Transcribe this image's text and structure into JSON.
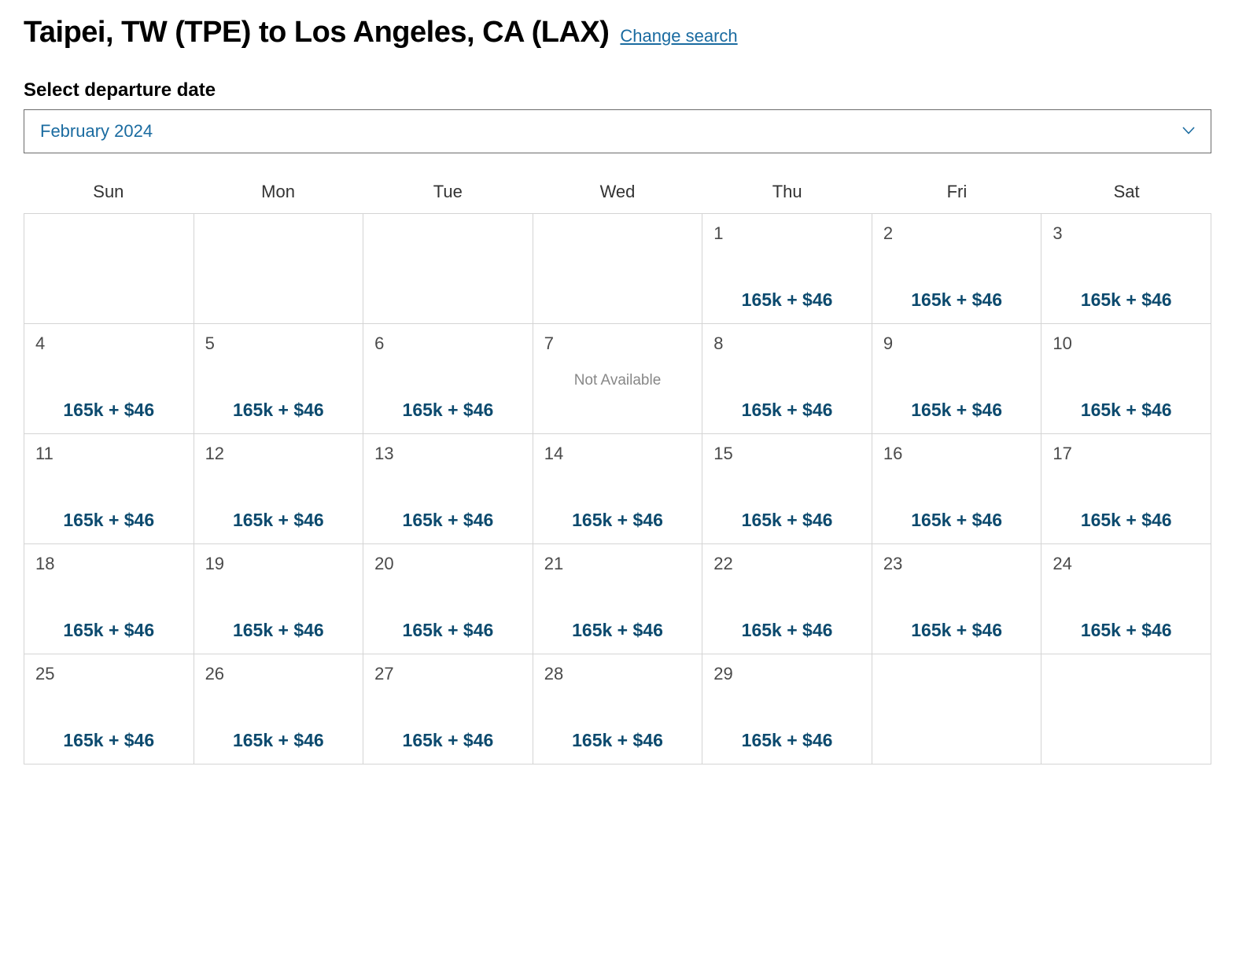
{
  "header": {
    "route_title": "Taipei, TW (TPE) to Los Angeles, CA (LAX)",
    "change_search_label": "Change search"
  },
  "select": {
    "label": "Select departure date",
    "value": "February 2024"
  },
  "colors": {
    "link": "#1a6ba0",
    "price": "#0c4a6e",
    "border": "#d4d4d4",
    "muted": "#888888",
    "text": "#000000",
    "chevron": "#1a6ba0"
  },
  "calendar": {
    "day_headers": [
      "Sun",
      "Mon",
      "Tue",
      "Wed",
      "Thu",
      "Fri",
      "Sat"
    ],
    "not_available_label": "Not Available",
    "cells": [
      {
        "day": "",
        "price": "",
        "available": null
      },
      {
        "day": "",
        "price": "",
        "available": null
      },
      {
        "day": "",
        "price": "",
        "available": null
      },
      {
        "day": "",
        "price": "",
        "available": null
      },
      {
        "day": "1",
        "price": "165k + $46",
        "available": true
      },
      {
        "day": "2",
        "price": "165k + $46",
        "available": true
      },
      {
        "day": "3",
        "price": "165k + $46",
        "available": true
      },
      {
        "day": "4",
        "price": "165k + $46",
        "available": true
      },
      {
        "day": "5",
        "price": "165k + $46",
        "available": true
      },
      {
        "day": "6",
        "price": "165k + $46",
        "available": true
      },
      {
        "day": "7",
        "price": "",
        "available": false
      },
      {
        "day": "8",
        "price": "165k + $46",
        "available": true
      },
      {
        "day": "9",
        "price": "165k + $46",
        "available": true
      },
      {
        "day": "10",
        "price": "165k + $46",
        "available": true
      },
      {
        "day": "11",
        "price": "165k + $46",
        "available": true
      },
      {
        "day": "12",
        "price": "165k + $46",
        "available": true
      },
      {
        "day": "13",
        "price": "165k + $46",
        "available": true
      },
      {
        "day": "14",
        "price": "165k + $46",
        "available": true
      },
      {
        "day": "15",
        "price": "165k + $46",
        "available": true
      },
      {
        "day": "16",
        "price": "165k + $46",
        "available": true
      },
      {
        "day": "17",
        "price": "165k + $46",
        "available": true
      },
      {
        "day": "18",
        "price": "165k + $46",
        "available": true
      },
      {
        "day": "19",
        "price": "165k + $46",
        "available": true
      },
      {
        "day": "20",
        "price": "165k + $46",
        "available": true
      },
      {
        "day": "21",
        "price": "165k + $46",
        "available": true
      },
      {
        "day": "22",
        "price": "165k + $46",
        "available": true
      },
      {
        "day": "23",
        "price": "165k + $46",
        "available": true
      },
      {
        "day": "24",
        "price": "165k + $46",
        "available": true
      },
      {
        "day": "25",
        "price": "165k + $46",
        "available": true
      },
      {
        "day": "26",
        "price": "165k + $46",
        "available": true
      },
      {
        "day": "27",
        "price": "165k + $46",
        "available": true
      },
      {
        "day": "28",
        "price": "165k + $46",
        "available": true
      },
      {
        "day": "29",
        "price": "165k + $46",
        "available": true
      },
      {
        "day": "",
        "price": "",
        "available": null
      },
      {
        "day": "",
        "price": "",
        "available": null
      }
    ]
  }
}
